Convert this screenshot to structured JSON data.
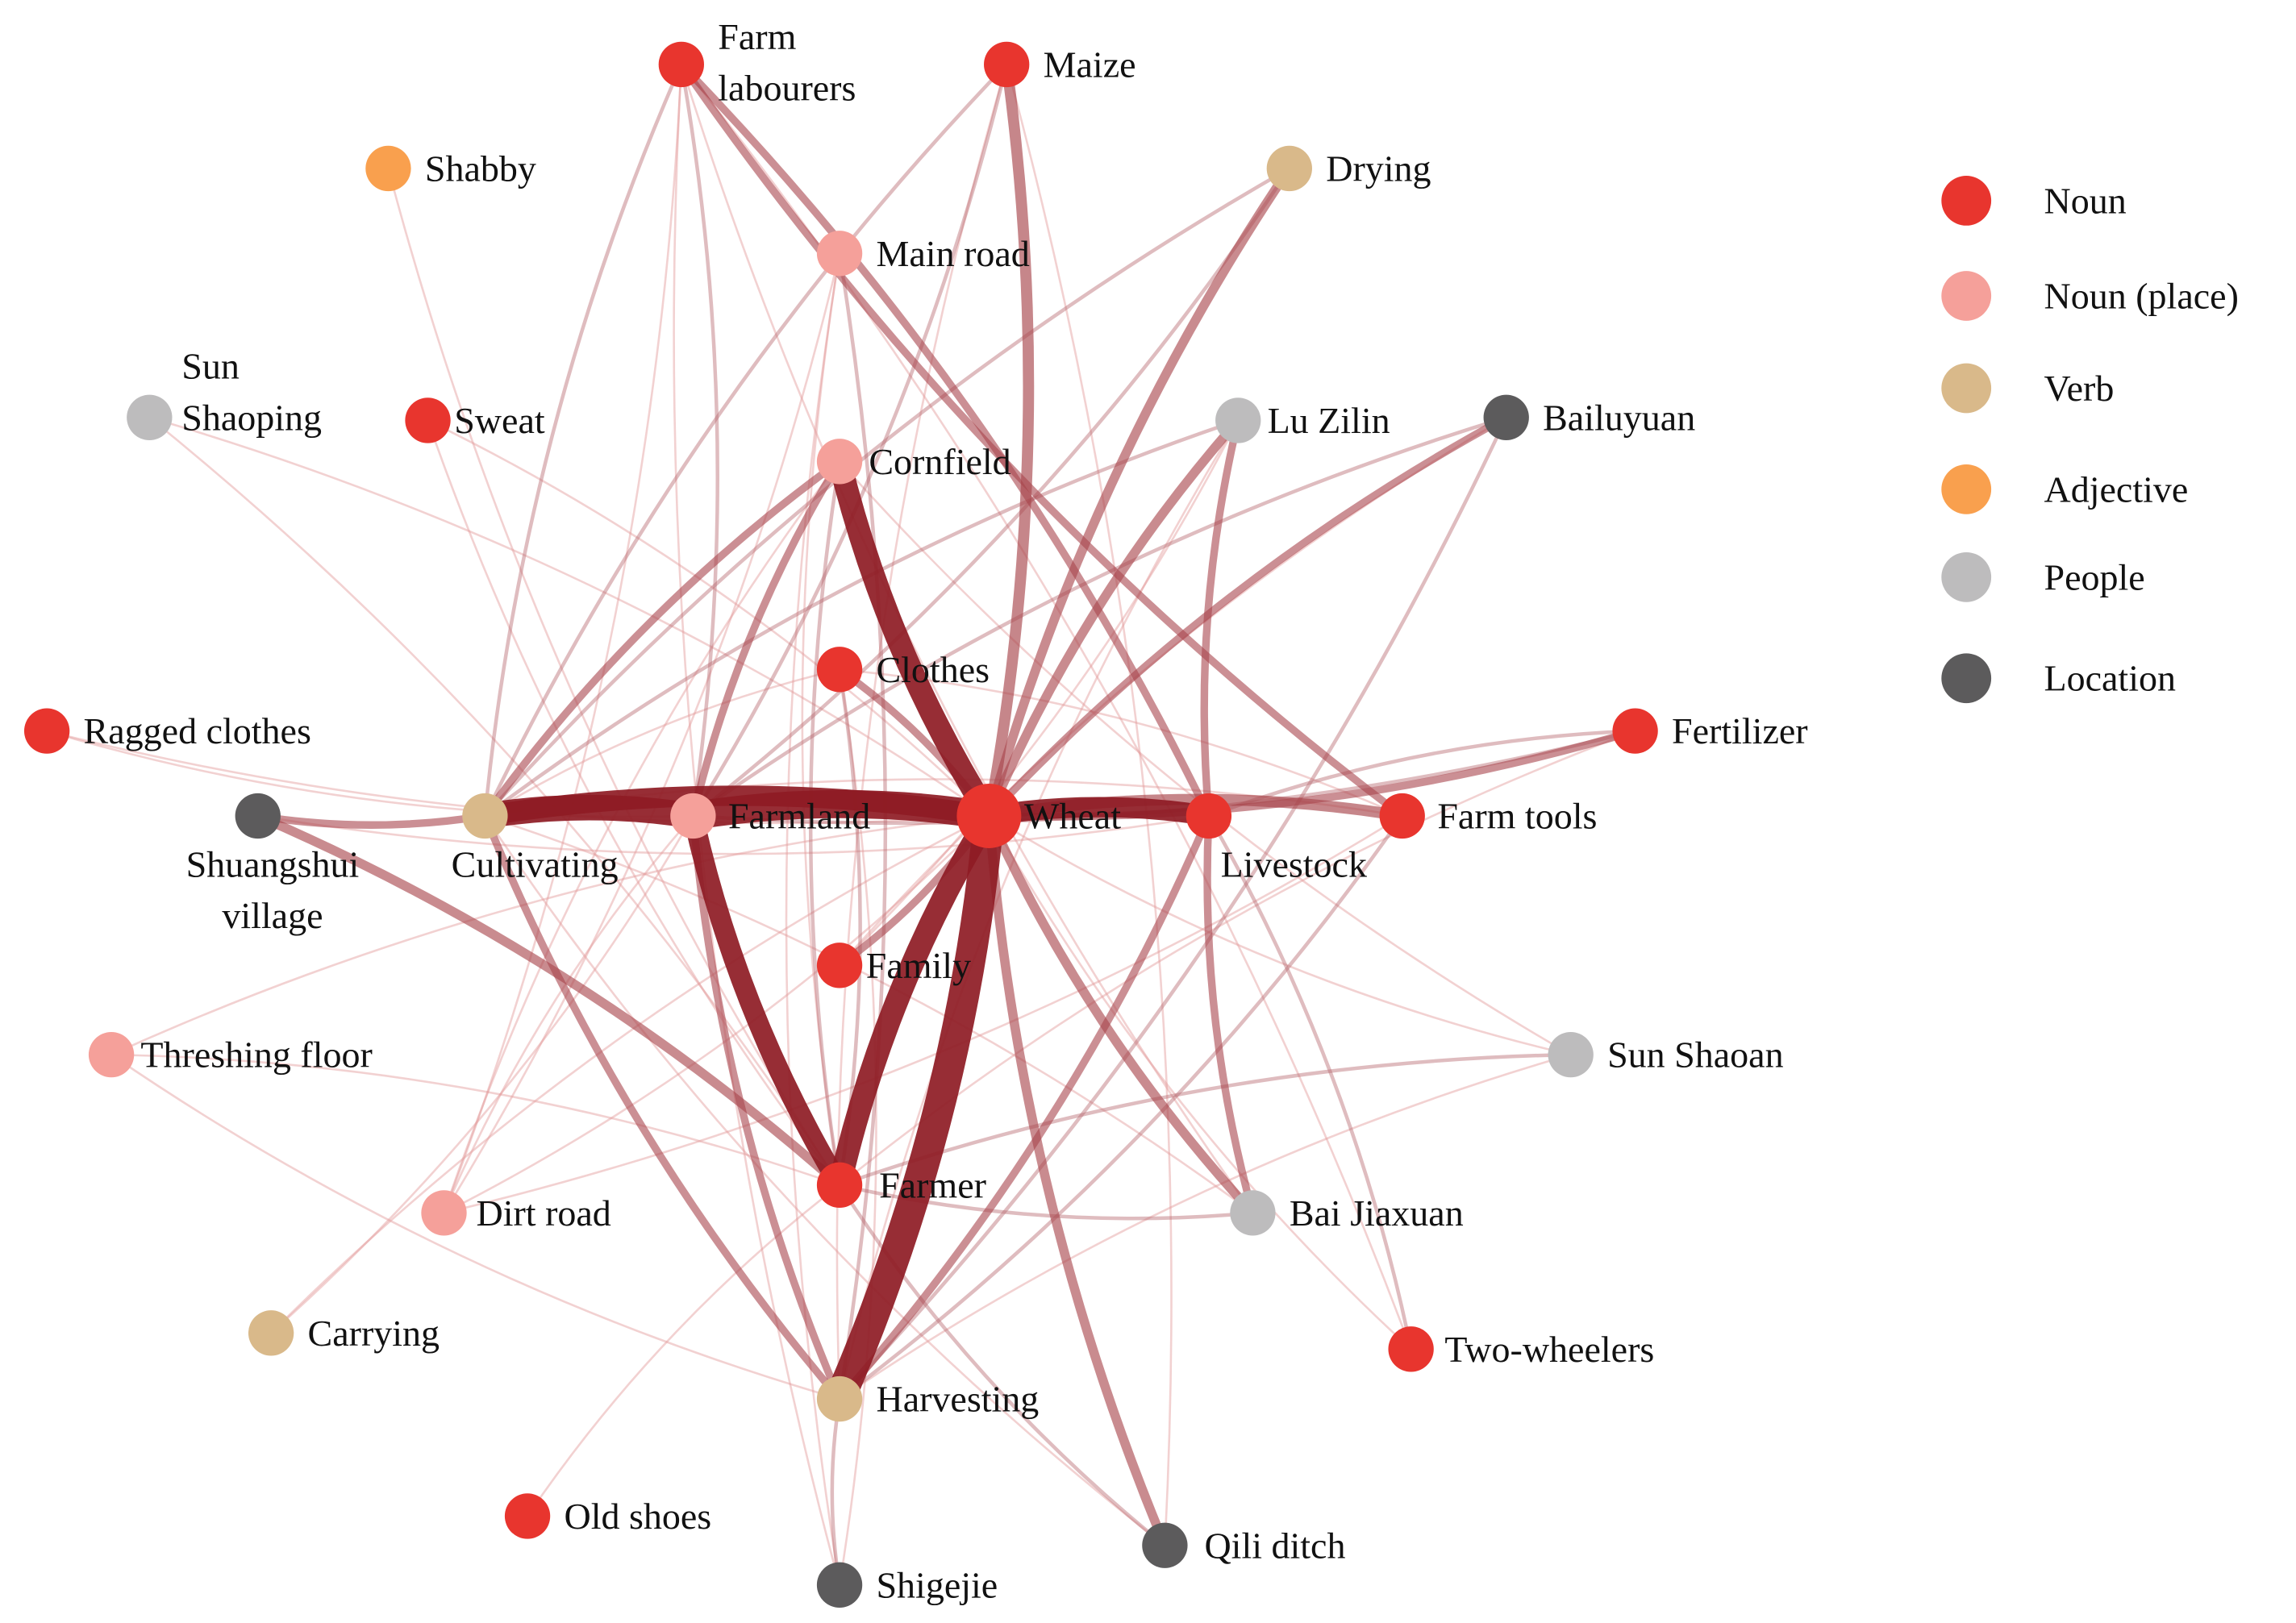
{
  "categories": {
    "noun": {
      "label": "Noun",
      "color": "#E8352E"
    },
    "place": {
      "label": "Noun (place)",
      "color": "#F5A09A"
    },
    "verb": {
      "label": "Verb",
      "color": "#D9B98A"
    },
    "adj": {
      "label": "Adjective",
      "color": "#F9A04E"
    },
    "people": {
      "label": "People",
      "color": "#BDBCBD"
    },
    "location": {
      "label": "Location",
      "color": "#5C5B5C"
    }
  },
  "legend_order": [
    "noun",
    "place",
    "verb",
    "adj",
    "people",
    "location"
  ],
  "nodes": [
    {
      "id": "wheat",
      "label": [
        "Wheat"
      ],
      "cat": "noun",
      "size": "large"
    },
    {
      "id": "farm_labourers",
      "label": [
        "Farm",
        "labourers"
      ],
      "cat": "noun"
    },
    {
      "id": "maize",
      "label": [
        "Maize"
      ],
      "cat": "noun"
    },
    {
      "id": "shabby",
      "label": [
        "Shabby"
      ],
      "cat": "adj"
    },
    {
      "id": "drying",
      "label": [
        "Drying"
      ],
      "cat": "verb"
    },
    {
      "id": "main_road",
      "label": [
        "Main road"
      ],
      "cat": "place"
    },
    {
      "id": "sun_shaoping",
      "label": [
        "Sun",
        "Shaoping"
      ],
      "cat": "people"
    },
    {
      "id": "sweat",
      "label": [
        "Sweat"
      ],
      "cat": "noun"
    },
    {
      "id": "lu_zilin",
      "label": [
        "Lu Zilin"
      ],
      "cat": "people"
    },
    {
      "id": "bailuyuan",
      "label": [
        "Bailuyuan"
      ],
      "cat": "location"
    },
    {
      "id": "cornfield",
      "label": [
        "Cornfield"
      ],
      "cat": "place"
    },
    {
      "id": "clothes",
      "label": [
        "Clothes"
      ],
      "cat": "noun"
    },
    {
      "id": "ragged_clothes",
      "label": [
        "Ragged clothes"
      ],
      "cat": "noun"
    },
    {
      "id": "fertilizer",
      "label": [
        "Fertilizer"
      ],
      "cat": "noun"
    },
    {
      "id": "shuangshui",
      "label": [
        "Shuangshui",
        "village"
      ],
      "cat": "location"
    },
    {
      "id": "cultivating",
      "label": [
        "Cultivating"
      ],
      "cat": "verb"
    },
    {
      "id": "farmland",
      "label": [
        "Farmland"
      ],
      "cat": "place"
    },
    {
      "id": "livestock",
      "label": [
        "Livestock"
      ],
      "cat": "noun"
    },
    {
      "id": "farm_tools",
      "label": [
        "Farm tools"
      ],
      "cat": "noun"
    },
    {
      "id": "family",
      "label": [
        "Family"
      ],
      "cat": "noun"
    },
    {
      "id": "threshing",
      "label": [
        "Threshing floor"
      ],
      "cat": "place"
    },
    {
      "id": "sun_shaoan",
      "label": [
        "Sun Shaoan"
      ],
      "cat": "people"
    },
    {
      "id": "farmer",
      "label": [
        "Farmer"
      ],
      "cat": "noun"
    },
    {
      "id": "dirt_road",
      "label": [
        "Dirt road"
      ],
      "cat": "place"
    },
    {
      "id": "bai_jiaxuan",
      "label": [
        "Bai Jiaxuan"
      ],
      "cat": "people"
    },
    {
      "id": "carrying",
      "label": [
        "Carrying"
      ],
      "cat": "verb"
    },
    {
      "id": "two_wheelers",
      "label": [
        "Two-wheelers"
      ],
      "cat": "noun"
    },
    {
      "id": "harvesting",
      "label": [
        "Harvesting"
      ],
      "cat": "verb"
    },
    {
      "id": "old_shoes",
      "label": [
        "Old shoes"
      ],
      "cat": "noun"
    },
    {
      "id": "qili_ditch",
      "label": [
        "Qili ditch"
      ],
      "cat": "location"
    },
    {
      "id": "shigejie",
      "label": [
        "Shigejie"
      ],
      "cat": "location"
    }
  ],
  "edges": [
    {
      "s": "wheat",
      "t": "harvesting",
      "w": 10
    },
    {
      "s": "wheat",
      "t": "farmland",
      "w": 9
    },
    {
      "s": "cultivating",
      "t": "farmland",
      "w": 8
    },
    {
      "s": "wheat",
      "t": "cornfield",
      "w": 7
    },
    {
      "s": "wheat",
      "t": "farmer",
      "w": 7
    },
    {
      "s": "farmland",
      "t": "farmer",
      "w": 6
    },
    {
      "s": "wheat",
      "t": "livestock",
      "w": 6
    },
    {
      "s": "wheat",
      "t": "cultivating",
      "w": 6
    },
    {
      "s": "wheat",
      "t": "maize",
      "w": 4
    },
    {
      "s": "wheat",
      "t": "farm_tools",
      "w": 4
    },
    {
      "s": "wheat",
      "t": "drying",
      "w": 3
    },
    {
      "s": "wheat",
      "t": "qili_ditch",
      "w": 3
    },
    {
      "s": "shuangshui",
      "t": "farmer",
      "w": 3
    },
    {
      "s": "wheat",
      "t": "bai_jiaxuan",
      "w": 3
    },
    {
      "s": "wheat",
      "t": "lu_zilin",
      "w": 3
    },
    {
      "s": "wheat",
      "t": "bailuyuan",
      "w": 2
    },
    {
      "s": "wheat",
      "t": "fertilizer",
      "w": 2
    },
    {
      "s": "farm_labourers",
      "t": "livestock",
      "w": 2
    },
    {
      "s": "farm_labourers",
      "t": "farm_tools",
      "w": 2
    },
    {
      "s": "cultivating",
      "t": "cornfield",
      "w": 2
    },
    {
      "s": "cultivating",
      "t": "harvesting",
      "w": 2
    },
    {
      "s": "cultivating",
      "t": "shuangshui",
      "w": 2
    },
    {
      "s": "harvesting",
      "t": "livestock",
      "w": 2
    },
    {
      "s": "livestock",
      "t": "lu_zilin",
      "w": 2
    },
    {
      "s": "livestock",
      "t": "bai_jiaxuan",
      "w": 2
    },
    {
      "s": "farmland",
      "t": "cornfield",
      "w": 2
    },
    {
      "s": "farmland",
      "t": "harvesting",
      "w": 2
    },
    {
      "s": "wheat",
      "t": "family",
      "w": 2
    },
    {
      "s": "wheat",
      "t": "clothes",
      "w": 2
    },
    {
      "s": "farmer",
      "t": "sun_shaoan",
      "w": 1.5
    },
    {
      "s": "farmer",
      "t": "bai_jiaxuan",
      "w": 1.5
    },
    {
      "s": "farmland",
      "t": "bailuyuan",
      "w": 1.5
    },
    {
      "s": "farmland",
      "t": "fertilizer",
      "w": 1.5
    },
    {
      "s": "farm_labourers",
      "t": "farmland",
      "w": 1
    },
    {
      "s": "farm_labourers",
      "t": "cultivating",
      "w": 1
    },
    {
      "s": "maize",
      "t": "farmland",
      "w": 1
    },
    {
      "s": "maize",
      "t": "cultivating",
      "w": 1
    },
    {
      "s": "drying",
      "t": "farmland",
      "w": 1
    },
    {
      "s": "drying",
      "t": "cultivating",
      "w": 1
    },
    {
      "s": "main_road",
      "t": "harvesting",
      "w": 1
    },
    {
      "s": "lu_zilin",
      "t": "cultivating",
      "w": 1
    },
    {
      "s": "bailuyuan",
      "t": "harvesting",
      "w": 1
    },
    {
      "s": "cornfield",
      "t": "farmer",
      "w": 1
    },
    {
      "s": "clothes",
      "t": "farmer",
      "w": 1
    },
    {
      "s": "fertilizer",
      "t": "livestock",
      "w": 1
    },
    {
      "s": "farm_tools",
      "t": "harvesting",
      "w": 1
    },
    {
      "s": "harvesting",
      "t": "shigejie",
      "w": 1
    },
    {
      "s": "qili_ditch",
      "t": "farmer",
      "w": 1
    },
    {
      "s": "two_wheelers",
      "t": "livestock",
      "w": 1
    },
    {
      "s": "threshing",
      "t": "wheat",
      "w": 0.6
    },
    {
      "s": "dirt_road",
      "t": "wheat",
      "w": 0.6
    },
    {
      "s": "dirt_road",
      "t": "farmland",
      "w": 0.6
    },
    {
      "s": "carrying",
      "t": "farmland",
      "w": 0.6
    },
    {
      "s": "old_shoes",
      "t": "farmer",
      "w": 0.5
    },
    {
      "s": "ragged_clothes",
      "t": "farmland",
      "w": 0.5
    },
    {
      "s": "sun_shaoping",
      "t": "wheat",
      "w": 0.6
    },
    {
      "s": "sun_shaoping",
      "t": "farmer",
      "w": 0.5
    },
    {
      "s": "sweat",
      "t": "farmer",
      "w": 0.6
    },
    {
      "s": "sweat",
      "t": "wheat",
      "w": 0.6
    },
    {
      "s": "shabby",
      "t": "farmer",
      "w": 0.5
    },
    {
      "s": "main_road",
      "t": "farmer",
      "w": 0.6
    },
    {
      "s": "main_road",
      "t": "dirt_road",
      "w": 0.5
    },
    {
      "s": "sun_shaoan",
      "t": "wheat",
      "w": 0.6
    },
    {
      "s": "sun_shaoan",
      "t": "harvesting",
      "w": 0.5
    },
    {
      "s": "two_wheelers",
      "t": "farm_labourers",
      "w": 0.6
    },
    {
      "s": "two_wheelers",
      "t": "wheat",
      "w": 0.6
    },
    {
      "s": "fertilizer",
      "t": "farmer",
      "w": 0.6
    },
    {
      "s": "threshing",
      "t": "farmer",
      "w": 0.5
    },
    {
      "s": "threshing",
      "t": "harvesting",
      "w": 0.5
    },
    {
      "s": "carrying",
      "t": "wheat",
      "w": 0.5
    },
    {
      "s": "dirt_road",
      "t": "farm_labourers",
      "w": 0.5
    },
    {
      "s": "dirt_road",
      "t": "cornfield",
      "w": 0.5
    },
    {
      "s": "dirt_road",
      "t": "farm_tools",
      "w": 0.5
    },
    {
      "s": "shigejie",
      "t": "farm_labourers",
      "w": 0.5
    },
    {
      "s": "shigejie",
      "t": "clothes",
      "w": 0.5
    },
    {
      "s": "shigejie",
      "t": "main_road",
      "w": 0.5
    },
    {
      "s": "bai_jiaxuan",
      "t": "cultivating",
      "w": 0.5
    },
    {
      "s": "bai_jiaxuan",
      "t": "farm_labourers",
      "w": 0.5
    },
    {
      "s": "qili_ditch",
      "t": "maize",
      "w": 0.5
    },
    {
      "s": "qili_ditch",
      "t": "cultivating",
      "w": 0.5
    },
    {
      "s": "family",
      "t": "lu_zilin",
      "w": 0.5
    },
    {
      "s": "family",
      "t": "bailuyuan",
      "w": 0.5
    },
    {
      "s": "clothes",
      "t": "cultivating",
      "w": 0.5
    },
    {
      "s": "clothes",
      "t": "farm_tools",
      "w": 0.5
    },
    {
      "s": "cornfield",
      "t": "sun_shaoan",
      "w": 0.5
    },
    {
      "s": "livestock",
      "t": "shuangshui",
      "w": 0.5
    },
    {
      "s": "farm_tools",
      "t": "cultivating",
      "w": 0.5
    },
    {
      "s": "ragged_clothes",
      "t": "wheat",
      "w": 0.4
    },
    {
      "s": "harvesting",
      "t": "lu_zilin",
      "w": 0.5
    },
    {
      "s": "maize",
      "t": "harvesting",
      "w": 0.5
    }
  ]
}
